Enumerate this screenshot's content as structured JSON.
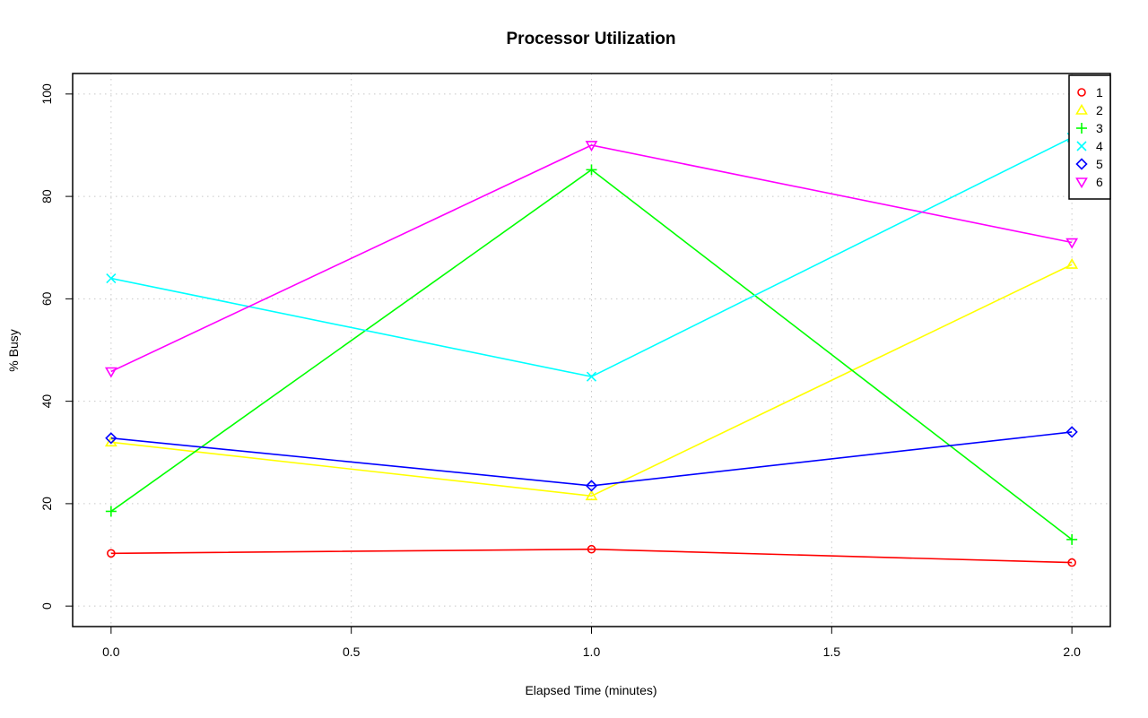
{
  "chart_data": {
    "type": "line",
    "title": "Processor Utilization",
    "xlabel": "Elapsed Time (minutes)",
    "ylabel": "% Busy",
    "x": [
      0.0,
      1.0,
      2.0
    ],
    "xlim": [
      -0.08,
      2.08
    ],
    "ylim": [
      -4,
      104
    ],
    "xticks": [
      0.0,
      0.5,
      1.0,
      1.5,
      2.0
    ],
    "xtick_labels": [
      "0.0",
      "0.5",
      "1.0",
      "1.5",
      "2.0"
    ],
    "yticks": [
      0,
      20,
      40,
      60,
      80,
      100
    ],
    "ytick_labels": [
      "0",
      "20",
      "40",
      "60",
      "80",
      "100"
    ],
    "grid": true,
    "legend_position": "top-right",
    "series": [
      {
        "name": "1",
        "values": [
          10.3,
          11.1,
          8.5
        ],
        "color": "#ff0000",
        "marker": "circle"
      },
      {
        "name": "2",
        "values": [
          32.0,
          21.5,
          66.7
        ],
        "color": "#ffff00",
        "marker": "triangle-up"
      },
      {
        "name": "3",
        "values": [
          18.5,
          85.2,
          13.0
        ],
        "color": "#00ff00",
        "marker": "plus"
      },
      {
        "name": "4",
        "values": [
          64.0,
          44.8,
          91.5
        ],
        "color": "#00ffff",
        "marker": "cross"
      },
      {
        "name": "5",
        "values": [
          32.8,
          23.5,
          34.0
        ],
        "color": "#0000ff",
        "marker": "diamond"
      },
      {
        "name": "6",
        "values": [
          45.8,
          90.0,
          71.0
        ],
        "color": "#ff00ff",
        "marker": "triangle-down"
      }
    ]
  }
}
